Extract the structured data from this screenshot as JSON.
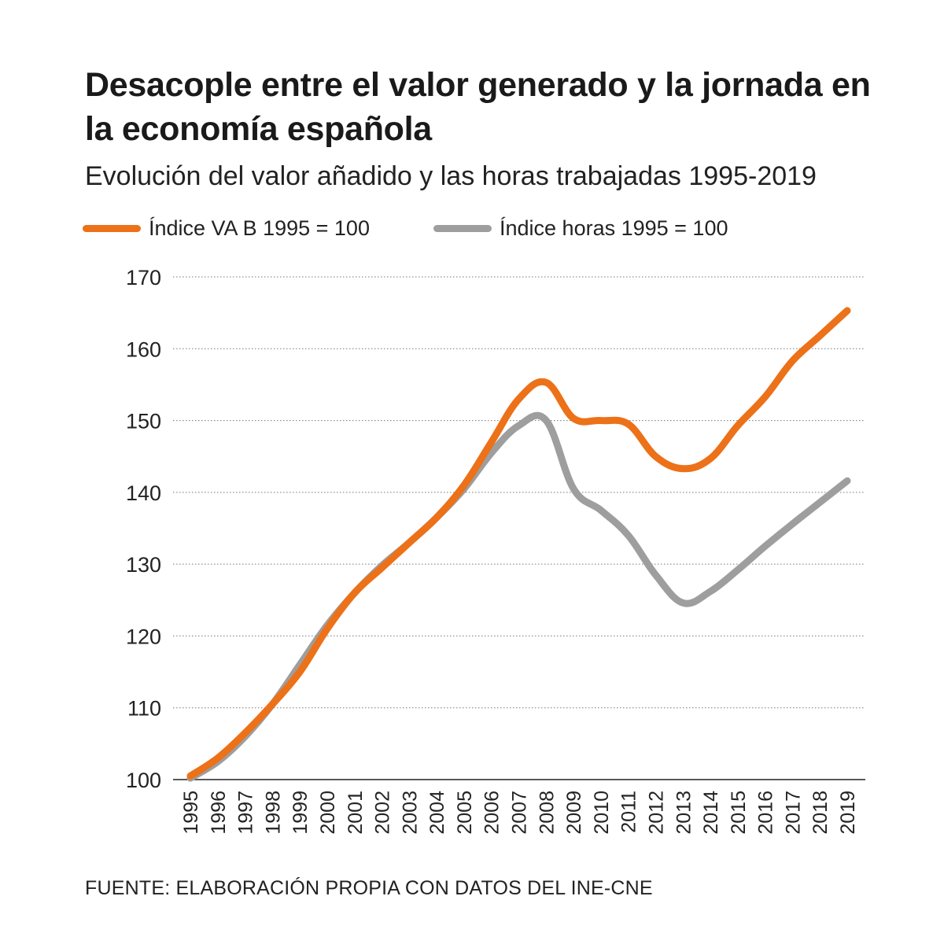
{
  "chart_data": {
    "type": "line",
    "title": "Desacople entre el valor generado y la jornada en la economía española",
    "subtitle": "Evolución del valor añadido y las horas trabajadas 1995-2019",
    "source": "FUENTE: ELABORACIÓN PROPIA CON DATOS DEL INE-CNE",
    "x": [
      "1995",
      "1996",
      "1997",
      "1998",
      "1999",
      "2000",
      "2001",
      "2002",
      "2003",
      "2004",
      "2005",
      "2006",
      "2007",
      "2008",
      "2009",
      "2010",
      "2011",
      "2012",
      "2013",
      "2014",
      "2015",
      "2016",
      "2017",
      "2018",
      "2019"
    ],
    "y_ticks": [
      "100",
      "110",
      "120",
      "130",
      "140",
      "150",
      "160",
      "170"
    ],
    "ylim": [
      100,
      170
    ],
    "grid": true,
    "legend_position": "top",
    "series": [
      {
        "name": "Índice VA B 1995 = 100",
        "color": "#ec7118",
        "values": [
          100.5,
          103,
          106.5,
          110.5,
          115,
          121,
          126,
          129.5,
          133,
          136.5,
          141,
          147,
          153,
          155.3,
          150.3,
          150,
          149.5,
          145,
          143.3,
          144.7,
          149.3,
          153.3,
          158.3,
          161.8,
          165.3
        ]
      },
      {
        "name": "Índice horas 1995 = 100",
        "color": "#9e9e9e",
        "values": [
          100.2,
          102.5,
          106,
          110.5,
          116,
          121.5,
          126,
          129.8,
          133,
          136.5,
          140.5,
          145.5,
          149.3,
          150,
          140.5,
          137.5,
          134,
          128.5,
          124.6,
          126.2,
          129.2,
          132.5,
          135.6,
          138.6,
          141.6
        ]
      }
    ]
  }
}
